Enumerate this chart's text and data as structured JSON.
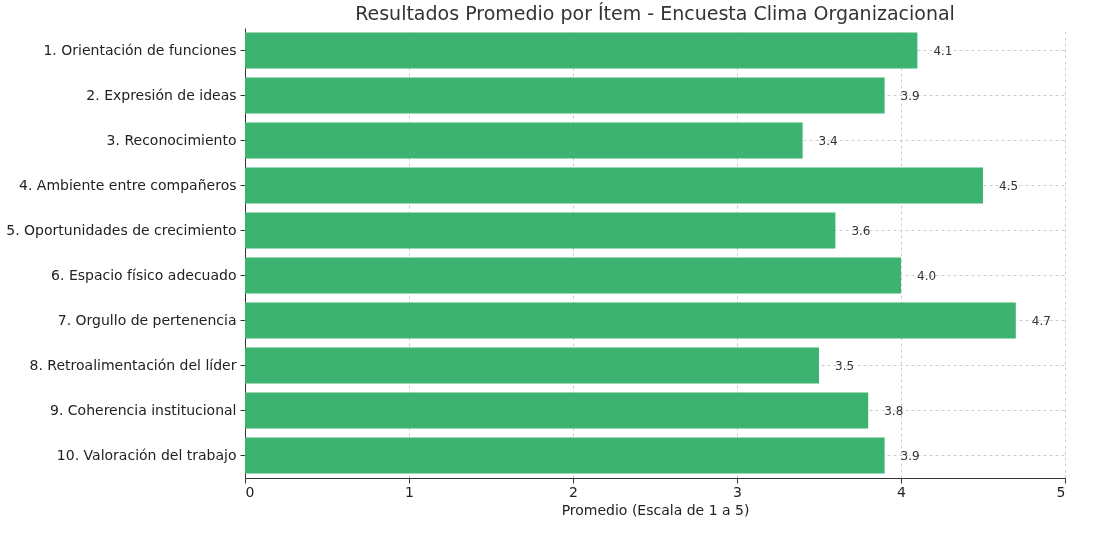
{
  "chart_data": {
    "type": "bar",
    "orientation": "horizontal",
    "title": "Resultados Promedio por Ítem - Encuesta Clima Organizacional",
    "xlabel": "Promedio (Escala de 1 a 5)",
    "categories": [
      "1. Orientación de funciones",
      "2. Expresión de ideas",
      "3. Reconocimiento",
      "4. Ambiente entre compañeros",
      "5. Oportunidades de crecimiento",
      "6. Espacio físico adecuado",
      "7. Orgullo de pertenencia",
      "8. Retroalimentación del líder",
      "9. Coherencia institucional",
      "10. Valoración del trabajo"
    ],
    "values": [
      4.1,
      3.9,
      3.4,
      4.5,
      3.6,
      4.0,
      4.7,
      3.5,
      3.8,
      3.9
    ],
    "value_labels": [
      "4.1",
      "3.9",
      "3.4",
      "4.5",
      "3.6",
      "4.0",
      "4.7",
      "3.5",
      "3.8",
      "3.9"
    ],
    "color": "#3cb371",
    "xlim": [
      0,
      5
    ],
    "xticks": [
      0,
      1,
      2,
      3,
      4,
      5
    ],
    "grid": true
  }
}
